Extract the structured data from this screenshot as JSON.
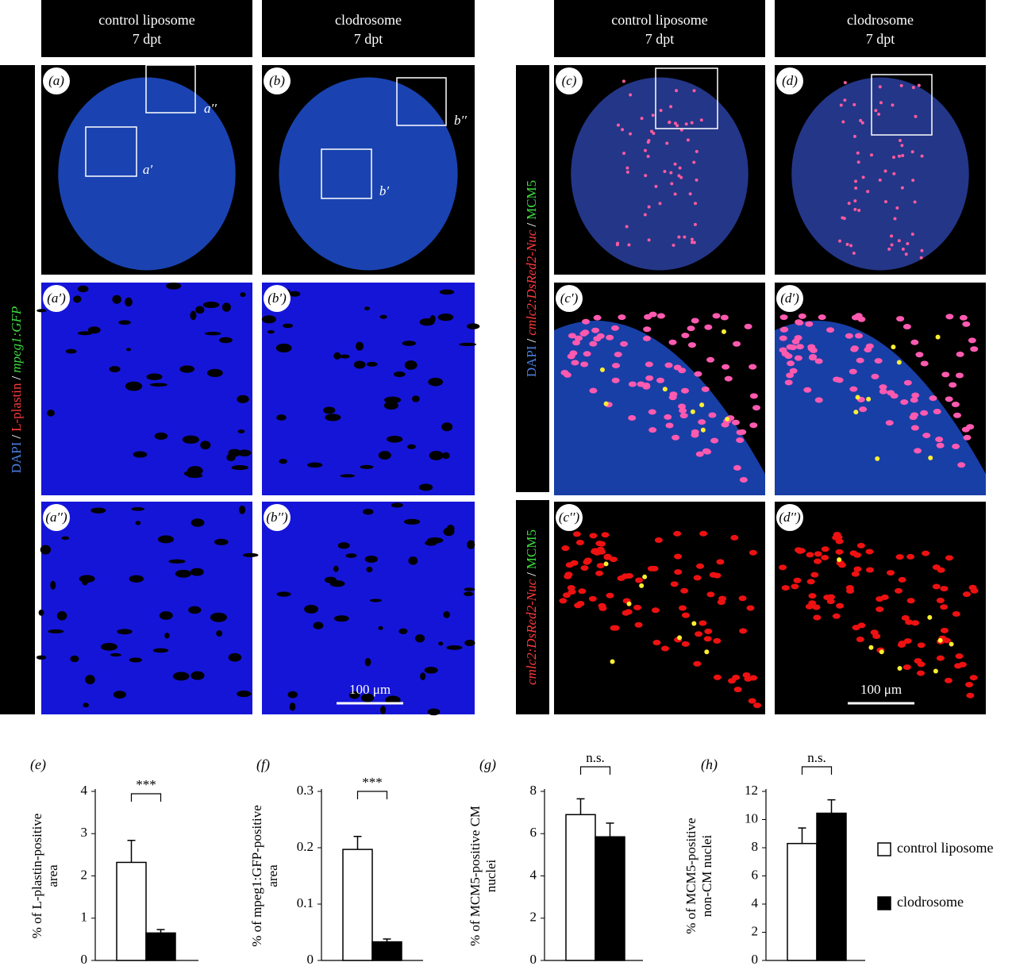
{
  "headers": [
    {
      "title": "control liposome",
      "subtitle": "7 dpt"
    },
    {
      "title": "clodrosome",
      "subtitle": "7 dpt"
    },
    {
      "title": "control liposome",
      "subtitle": "7 dpt"
    },
    {
      "title": "clodrosome",
      "subtitle": "7 dpt"
    }
  ],
  "side_labels": [
    {
      "parts": [
        {
          "text": "DAPI",
          "color": "#4a7fe0"
        },
        {
          "text": "/",
          "color": "#ffffff"
        },
        {
          "text": "L-plastin",
          "color": "#ff3a3a"
        },
        {
          "text": "/",
          "color": "#ffffff"
        },
        {
          "text": "mpeg1:GFP",
          "color": "#3ddc3d",
          "italic": true
        }
      ]
    },
    {
      "parts": [
        {
          "text": "DAPI",
          "color": "#4a7fe0"
        },
        {
          "text": "/",
          "color": "#ffffff"
        },
        {
          "text": "cmlc2:DsRed2-Nuc",
          "color": "#ff3a3a",
          "italic": true
        },
        {
          "text": "/",
          "color": "#ffffff"
        },
        {
          "text": "MCM5",
          "color": "#3ddc3d"
        }
      ]
    },
    {
      "parts": [
        {
          "text": "cmlc2:DsRed2-Nuc",
          "color": "#ff3a3a",
          "italic": true
        },
        {
          "text": "/",
          "color": "#ffffff"
        },
        {
          "text": "MCM5",
          "color": "#3ddc3d"
        }
      ]
    }
  ],
  "panels": [
    {
      "label": "(a)",
      "insets": [
        "a′",
        "a′′"
      ]
    },
    {
      "label": "(b)",
      "insets": [
        "b′",
        "b′′"
      ]
    },
    {
      "label": "(c)"
    },
    {
      "label": "(d)"
    },
    {
      "label": "(a′)"
    },
    {
      "label": "(b′)"
    },
    {
      "label": "(c′)"
    },
    {
      "label": "(d′)"
    },
    {
      "label": "(a′′)"
    },
    {
      "label": "(b′′)",
      "scale_bar": "100 μm"
    },
    {
      "label": "(c′′)"
    },
    {
      "label": "(d′′)",
      "scale_bar": "100 μm"
    }
  ],
  "legend": [
    {
      "name": "control liposome",
      "color": "#ffffff"
    },
    {
      "name": "clodrosome",
      "color": "#000000"
    }
  ],
  "chart_data": [
    {
      "type": "bar",
      "label": "(e)",
      "ylabel": [
        "% of L-plastin-positive",
        "area"
      ],
      "values": [
        2.32,
        0.65
      ],
      "errors": [
        0.52,
        0.08
      ],
      "colors": [
        "#ffffff",
        "#000000"
      ],
      "ylim": [
        0,
        4
      ],
      "yticks": [
        0,
        1,
        2,
        3,
        4
      ],
      "annotation": "***"
    },
    {
      "type": "bar",
      "label": "(f)",
      "ylabel": [
        "% of mpeg1:GFP-positive",
        "area"
      ],
      "values": [
        0.197,
        0.033
      ],
      "errors": [
        0.023,
        0.005
      ],
      "colors": [
        "#ffffff",
        "#000000"
      ],
      "ylim": [
        0,
        0.3
      ],
      "yticks": [
        0,
        0.1,
        0.2,
        0.3
      ],
      "annotation": "***"
    },
    {
      "type": "bar",
      "label": "(g)",
      "ylabel": [
        "% of MCM5-positive CM",
        "nuclei"
      ],
      "values": [
        6.9,
        5.85
      ],
      "errors": [
        0.75,
        0.65
      ],
      "colors": [
        "#ffffff",
        "#000000"
      ],
      "ylim": [
        0,
        8
      ],
      "yticks": [
        0,
        2,
        4,
        6,
        8
      ],
      "annotation": "n.s."
    },
    {
      "type": "bar",
      "label": "(h)",
      "ylabel": [
        "% of MCM5-positive",
        "non-CM nuclei"
      ],
      "values": [
        8.3,
        10.45
      ],
      "errors": [
        1.1,
        0.95
      ],
      "colors": [
        "#ffffff",
        "#000000"
      ],
      "ylim": [
        0,
        12
      ],
      "yticks": [
        0,
        2,
        4,
        6,
        8,
        10,
        12
      ],
      "annotation": "n.s."
    }
  ]
}
